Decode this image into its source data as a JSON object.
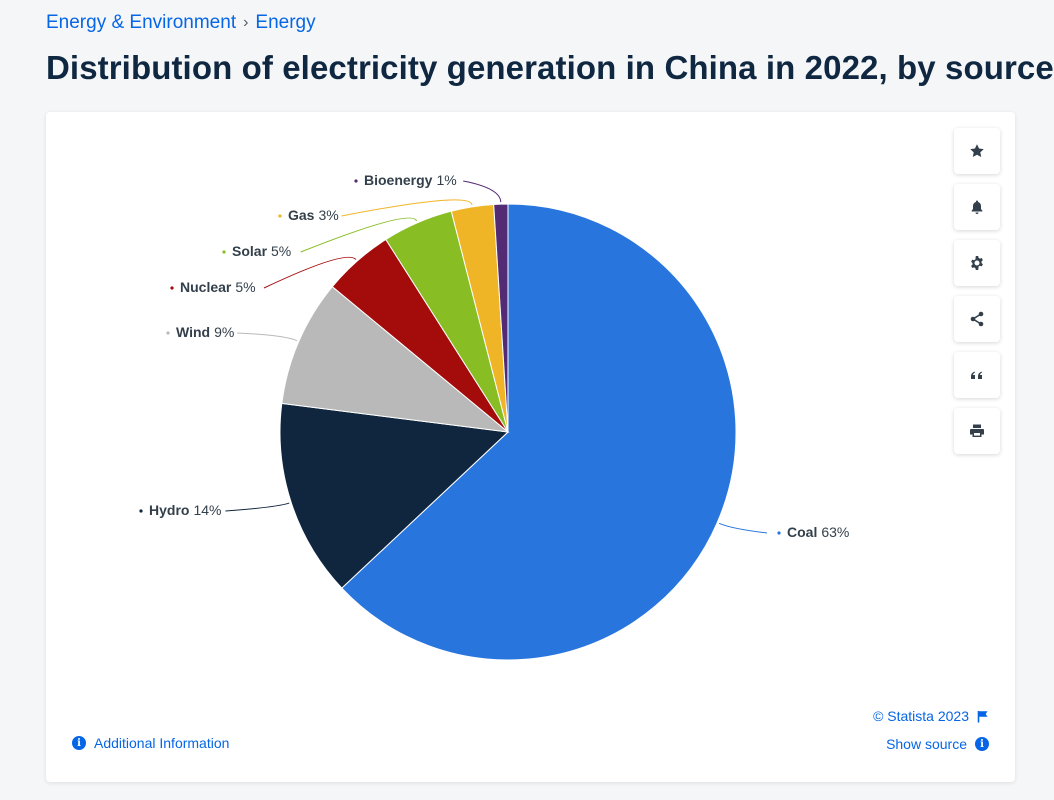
{
  "breadcrumb": {
    "items": [
      "Energy & Environment",
      "Energy"
    ],
    "separator": "›"
  },
  "page": {
    "title": "Distribution of electricity generation in China in 2022, by source"
  },
  "toolbar": {
    "buttons": [
      "favorite",
      "notification",
      "settings",
      "share",
      "cite",
      "print"
    ]
  },
  "footer": {
    "copyright": "© Statista 2023",
    "show_source": "Show source",
    "additional_info": "Additional Information"
  },
  "chart_data": {
    "type": "pie",
    "title": "",
    "slices": [
      {
        "label": "Coal",
        "value": 63,
        "display": "63%",
        "color": "#2876dd"
      },
      {
        "label": "Hydro",
        "value": 14,
        "display": "14%",
        "color": "#10263e"
      },
      {
        "label": "Wind",
        "value": 9,
        "display": "9%",
        "color": "#b9b9b9"
      },
      {
        "label": "Nuclear",
        "value": 5,
        "display": "5%",
        "color": "#a40b0b"
      },
      {
        "label": "Solar",
        "value": 5,
        "display": "5%",
        "color": "#89bd24"
      },
      {
        "label": "Gas",
        "value": 3,
        "display": "3%",
        "color": "#efb526"
      },
      {
        "label": "Bioenergy",
        "value": 1,
        "display": "1%",
        "color": "#532b74"
      }
    ]
  }
}
